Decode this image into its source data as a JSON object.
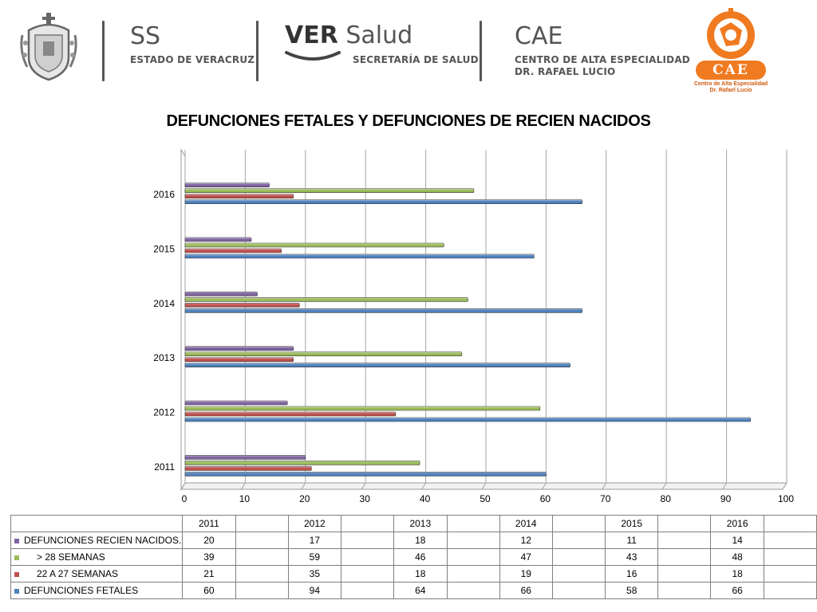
{
  "header": {
    "ss_title": "SS",
    "ss_subtitle": "ESTADO DE VERACRUZ",
    "ver_brand": "VER",
    "salud_brand": "Salud",
    "salud_subtitle": "SECRETARÍA DE SALUD",
    "cae_title": "CAE",
    "cae_line1": "CENTRO DE ALTA ESPECIALIDAD",
    "cae_line2": "DR. RAFAEL LUCIO",
    "cae_logo_text": "CAE",
    "cae_logo_caption1": "Centro de Alta Especialidad",
    "cae_logo_caption2": "Dr. Rafael Lucio"
  },
  "chart_data": {
    "type": "bar",
    "orientation": "horizontal",
    "title": "DEFUNCIONES FETALES Y DEFUNCIONES DE RECIEN NACIDOS",
    "categories": [
      "2011",
      "2012",
      "2013",
      "2014",
      "2015",
      "2016"
    ],
    "series": [
      {
        "name": "DEFUNCIONES FETALES",
        "color": "#4f81bd",
        "values": [
          60,
          94,
          64,
          66,
          58,
          66
        ]
      },
      {
        "name": "22 A 27 SEMANAS",
        "color": "#c0504d",
        "values": [
          21,
          35,
          18,
          19,
          16,
          18
        ]
      },
      {
        "name": "> 28 SEMANAS",
        "color": "#9bbb59",
        "values": [
          39,
          59,
          46,
          47,
          43,
          48
        ]
      },
      {
        "name": "DEFUNCIONES RECIEN NACIDOS.",
        "color": "#8064a2",
        "values": [
          20,
          17,
          18,
          12,
          11,
          14
        ]
      }
    ],
    "xlim": [
      0,
      100
    ],
    "x_ticks": [
      "0",
      "10",
      "20",
      "30",
      "40",
      "50",
      "60",
      "70",
      "80",
      "90",
      "100"
    ],
    "grid": true,
    "legend": "data-table-below"
  }
}
